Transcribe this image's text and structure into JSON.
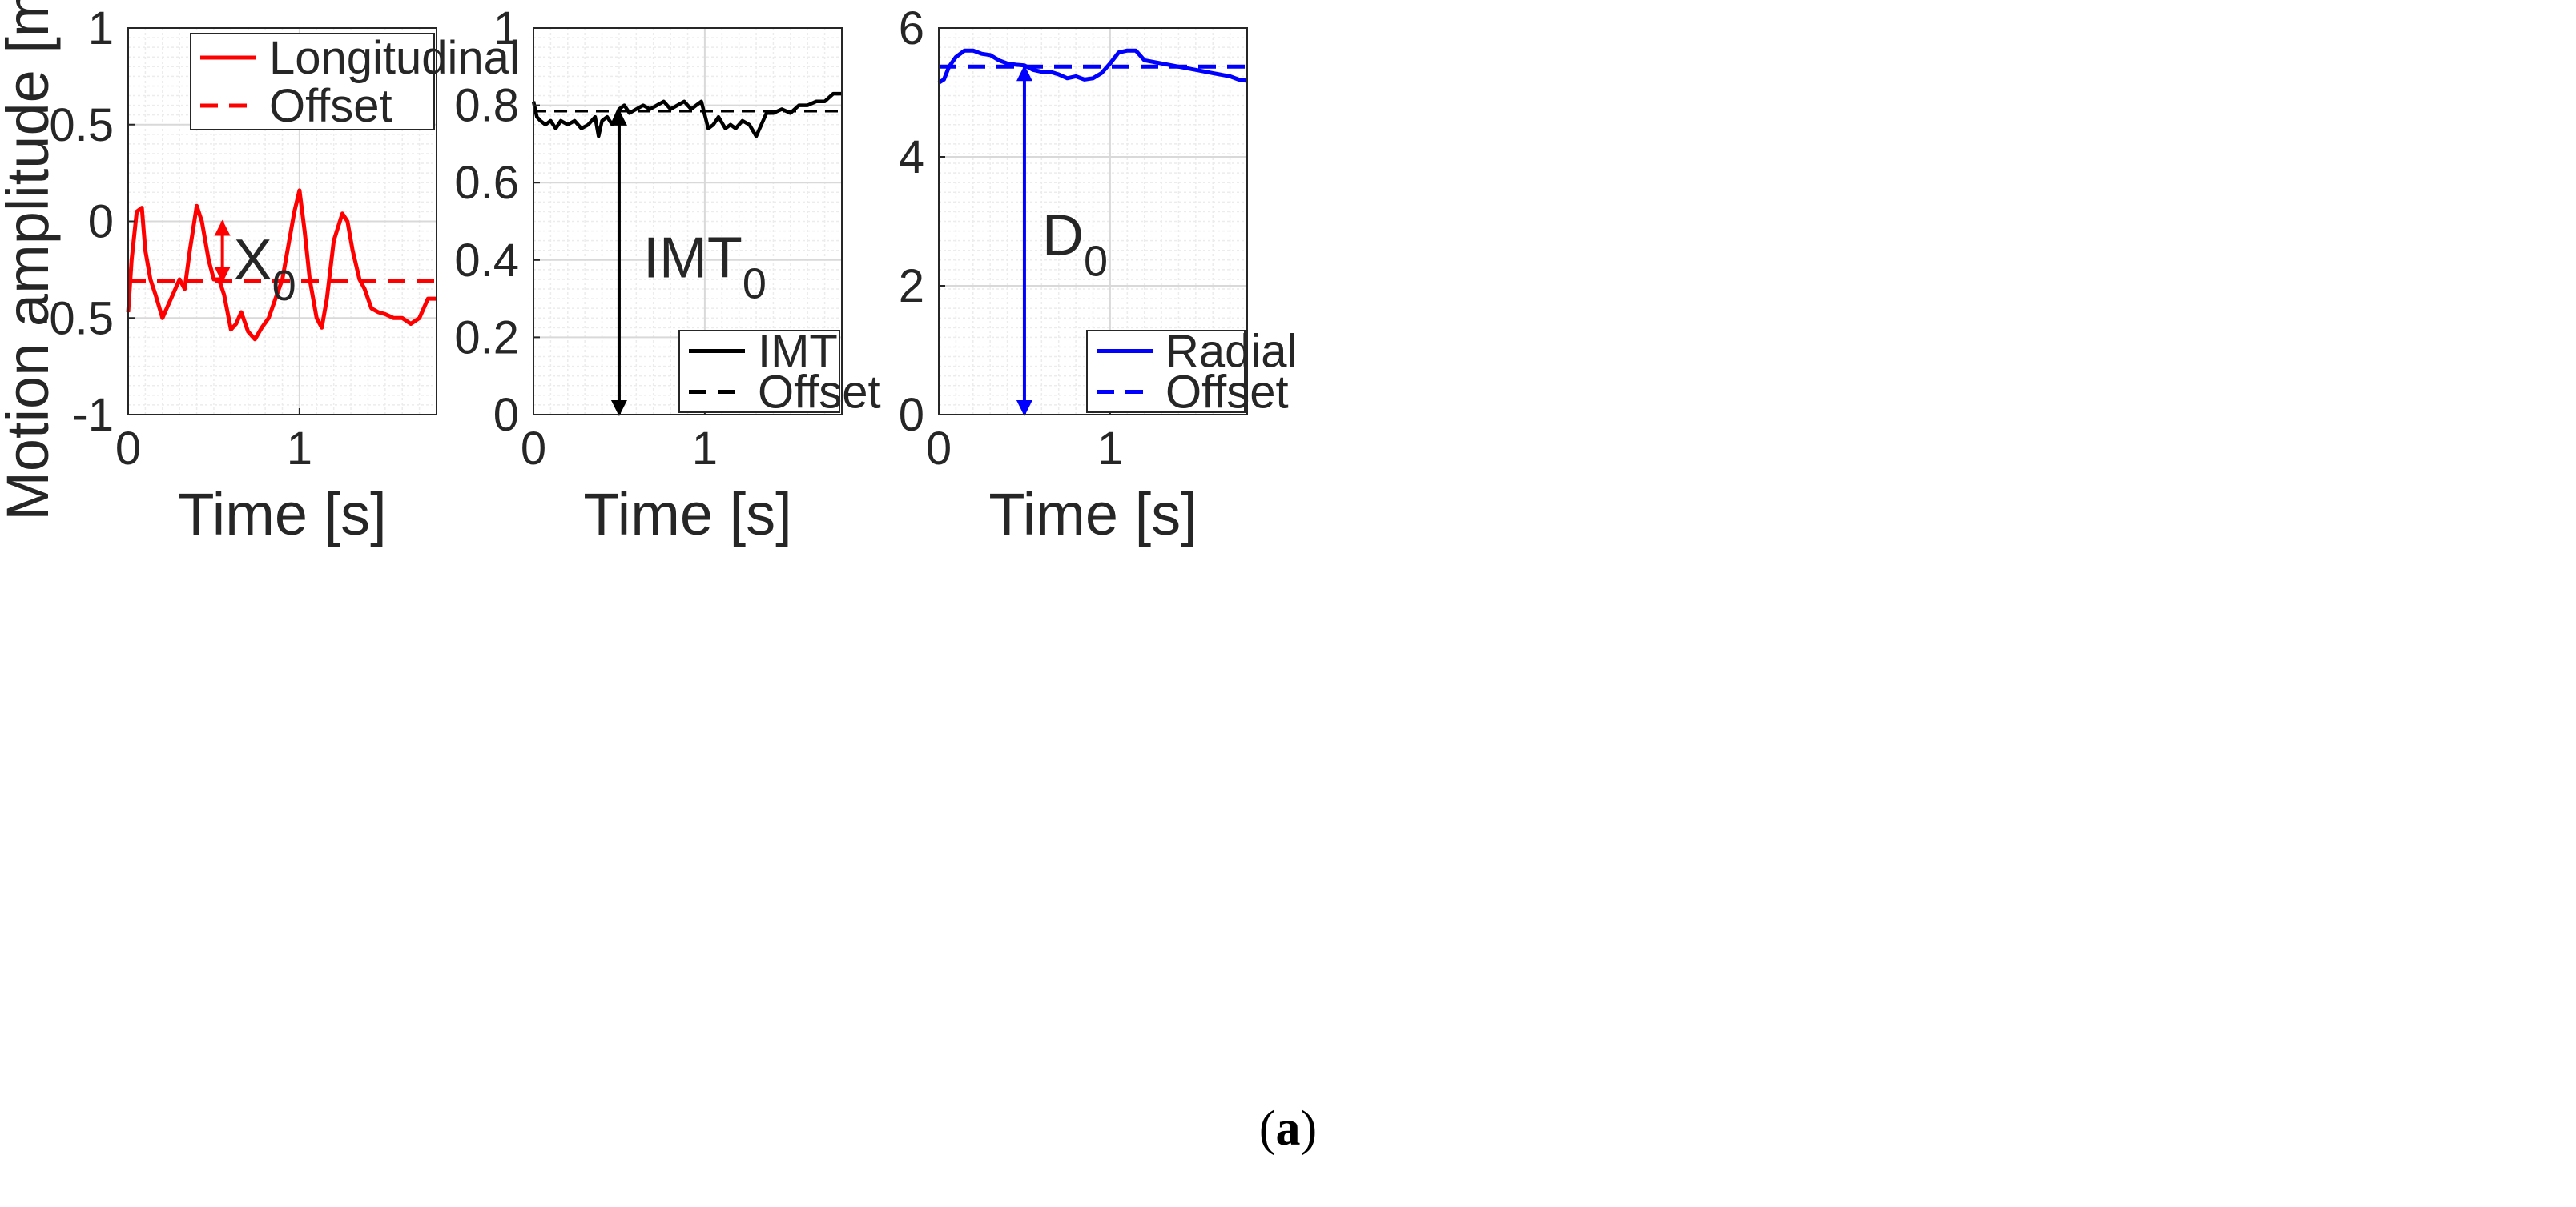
{
  "caption": {
    "open": "(",
    "letter": "a",
    "close": ")"
  },
  "colors": {
    "red": "#ff0000",
    "black": "#000000",
    "blue": "#0000ff",
    "grid": "#d9d9d9",
    "axis": "#262626"
  },
  "chart_data": [
    {
      "type": "line",
      "title": "",
      "xlabel": "Time [s]",
      "ylabel": "Motion amplitude [mm]",
      "xlim": [
        0,
        1.8
      ],
      "ylim": [
        -1,
        1
      ],
      "xticks": [
        0,
        1
      ],
      "xtick_labels": [
        "0",
        "1"
      ],
      "yticks": [
        -1,
        -0.5,
        0,
        0.5,
        1
      ],
      "ytick_labels": [
        "-1",
        "-0.5",
        "0",
        "0.5",
        "1"
      ],
      "grid": "on (major and minor)",
      "legend_position": "top-right",
      "series": [
        {
          "name": "Longitudinal",
          "color": "#ff0000",
          "style": "solid",
          "x": [
            0,
            0.02,
            0.05,
            0.08,
            0.1,
            0.13,
            0.16,
            0.2,
            0.25,
            0.3,
            0.33,
            0.36,
            0.4,
            0.43,
            0.47,
            0.5,
            0.53,
            0.56,
            0.6,
            0.63,
            0.66,
            0.7,
            0.74,
            0.78,
            0.82,
            0.86,
            0.9,
            0.94,
            0.97,
            1.0,
            1.03,
            1.06,
            1.1,
            1.13,
            1.16,
            1.2,
            1.25,
            1.28,
            1.31,
            1.35,
            1.38,
            1.42,
            1.46,
            1.5,
            1.55,
            1.6,
            1.65,
            1.7,
            1.75,
            1.8
          ],
          "y": [
            -0.47,
            -0.2,
            0.05,
            0.07,
            -0.15,
            -0.3,
            -0.38,
            -0.5,
            -0.4,
            -0.3,
            -0.35,
            -0.15,
            0.08,
            0.0,
            -0.2,
            -0.3,
            -0.3,
            -0.38,
            -0.56,
            -0.53,
            -0.47,
            -0.57,
            -0.61,
            -0.55,
            -0.5,
            -0.4,
            -0.3,
            -0.1,
            0.05,
            0.16,
            -0.05,
            -0.3,
            -0.5,
            -0.55,
            -0.4,
            -0.1,
            0.04,
            0.0,
            -0.15,
            -0.3,
            -0.35,
            -0.45,
            -0.47,
            -0.48,
            -0.5,
            -0.5,
            -0.53,
            -0.5,
            -0.4,
            -0.4
          ]
        },
        {
          "name": "Offset",
          "color": "#ff0000",
          "style": "dashed",
          "x": [
            0,
            1.8
          ],
          "y": [
            -0.31,
            -0.31
          ]
        }
      ],
      "annotation": {
        "label": "X",
        "subscript": "0",
        "x": 0.55,
        "y_from": -0.31,
        "y_to": 0.0,
        "color": "#ff0000"
      }
    },
    {
      "type": "line",
      "title": "",
      "xlabel": "Time [s]",
      "ylabel": "",
      "xlim": [
        0,
        1.8
      ],
      "ylim": [
        0,
        1
      ],
      "xticks": [
        0,
        1
      ],
      "xtick_labels": [
        "0",
        "1"
      ],
      "yticks": [
        0,
        0.2,
        0.4,
        0.6,
        0.8,
        1
      ],
      "ytick_labels": [
        "0",
        "0.2",
        "0.4",
        "0.6",
        "0.8",
        "1"
      ],
      "grid": "on (major and minor)",
      "legend_position": "bottom-right",
      "series": [
        {
          "name": "IMT",
          "color": "#000000",
          "style": "solid",
          "x": [
            0,
            0.02,
            0.04,
            0.07,
            0.1,
            0.13,
            0.16,
            0.2,
            0.24,
            0.28,
            0.32,
            0.36,
            0.38,
            0.4,
            0.43,
            0.46,
            0.5,
            0.53,
            0.56,
            0.6,
            0.64,
            0.68,
            0.72,
            0.76,
            0.8,
            0.84,
            0.88,
            0.9,
            0.92,
            0.95,
            0.98,
            1.02,
            1.05,
            1.08,
            1.12,
            1.15,
            1.18,
            1.22,
            1.26,
            1.3,
            1.33,
            1.36,
            1.4,
            1.45,
            1.5,
            1.55,
            1.6,
            1.65,
            1.7,
            1.75,
            1.8
          ],
          "y": [
            0.81,
            0.77,
            0.76,
            0.75,
            0.76,
            0.74,
            0.76,
            0.75,
            0.76,
            0.74,
            0.75,
            0.77,
            0.72,
            0.76,
            0.77,
            0.75,
            0.79,
            0.8,
            0.78,
            0.79,
            0.8,
            0.79,
            0.8,
            0.81,
            0.79,
            0.8,
            0.81,
            0.8,
            0.79,
            0.8,
            0.81,
            0.74,
            0.75,
            0.77,
            0.74,
            0.75,
            0.74,
            0.76,
            0.75,
            0.72,
            0.75,
            0.78,
            0.78,
            0.79,
            0.78,
            0.8,
            0.8,
            0.81,
            0.81,
            0.83,
            0.83
          ]
        },
        {
          "name": "Offset",
          "color": "#000000",
          "style": "dashed",
          "x": [
            0,
            1.8
          ],
          "y": [
            0.785,
            0.785
          ]
        }
      ],
      "annotation": {
        "label": "IMT",
        "subscript": "0",
        "x": 0.5,
        "y_from": 0,
        "y_to": 0.785,
        "color": "#000000"
      }
    },
    {
      "type": "line",
      "title": "",
      "xlabel": "Time [s]",
      "ylabel": "",
      "xlim": [
        0,
        1.8
      ],
      "ylim": [
        0,
        6
      ],
      "xticks": [
        0,
        1
      ],
      "xtick_labels": [
        "0",
        "1"
      ],
      "yticks": [
        0,
        2,
        4,
        6
      ],
      "ytick_labels": [
        "0",
        "2",
        "4",
        "6"
      ],
      "grid": "on (major and minor)",
      "legend_position": "bottom-right",
      "series": [
        {
          "name": "Radial",
          "color": "#0000ff",
          "style": "solid",
          "x": [
            0,
            0.03,
            0.06,
            0.1,
            0.15,
            0.2,
            0.25,
            0.3,
            0.35,
            0.4,
            0.45,
            0.5,
            0.55,
            0.6,
            0.65,
            0.7,
            0.75,
            0.8,
            0.85,
            0.9,
            0.95,
            1.0,
            1.05,
            1.1,
            1.15,
            1.2,
            1.3,
            1.4,
            1.5,
            1.6,
            1.7,
            1.75,
            1.8
          ],
          "y": [
            5.15,
            5.2,
            5.4,
            5.55,
            5.65,
            5.65,
            5.6,
            5.58,
            5.5,
            5.45,
            5.43,
            5.42,
            5.35,
            5.32,
            5.32,
            5.28,
            5.22,
            5.25,
            5.2,
            5.22,
            5.3,
            5.45,
            5.62,
            5.65,
            5.65,
            5.5,
            5.45,
            5.4,
            5.35,
            5.3,
            5.25,
            5.2,
            5.18
          ]
        },
        {
          "name": "Offset",
          "color": "#0000ff",
          "style": "dashed",
          "x": [
            0,
            1.8
          ],
          "y": [
            5.4,
            5.4
          ]
        }
      ],
      "annotation": {
        "label": "D",
        "subscript": "0",
        "x": 0.5,
        "y_from": 0,
        "y_to": 5.4,
        "color": "#0000ff"
      }
    }
  ]
}
